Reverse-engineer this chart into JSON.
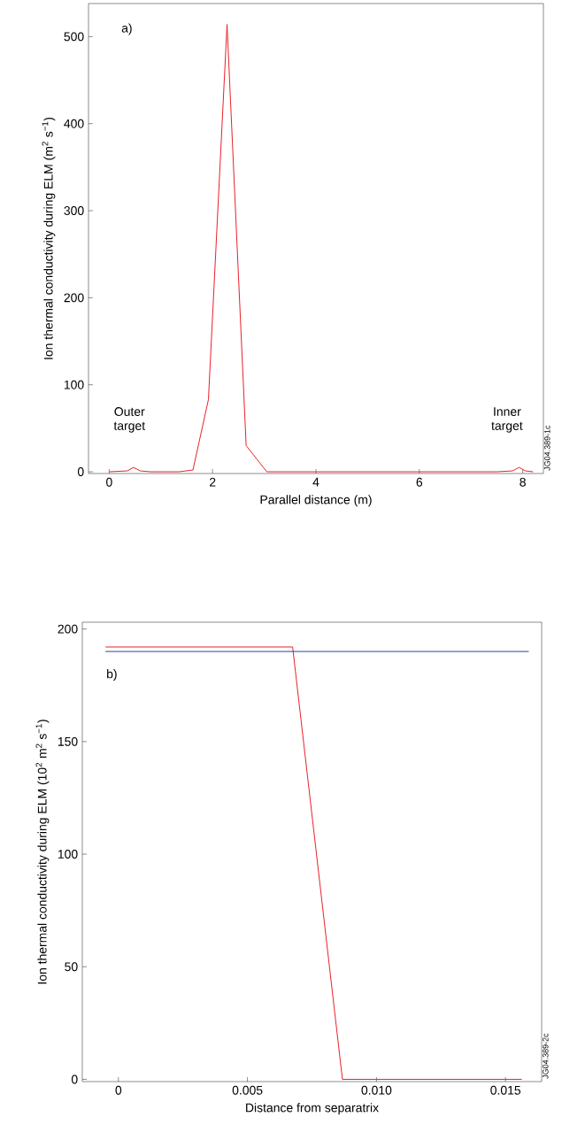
{
  "chart_data": [
    {
      "type": "line",
      "xlabel": "Parallel distance (m)",
      "ylabel": "Ion thermal conductivity during ELM (m$^{2}$ s$^{−1}$)",
      "xlim": [
        -0.4,
        8.4
      ],
      "ylim": [
        -2,
        538
      ],
      "xticks": [
        0,
        2,
        4,
        6,
        8
      ],
      "yticks": [
        0,
        100,
        200,
        300,
        400,
        500
      ],
      "annotations": [
        "a)",
        "Outer target",
        "Inner target",
        "JG04.389-1c"
      ],
      "series": [
        {
          "color": "#e8202a",
          "x": [
            0,
            0.35,
            0.47,
            0.6,
            0.8,
            1.35,
            1.62,
            1.92,
            2.28,
            2.65,
            3.05,
            5,
            7.5,
            7.8,
            7.93,
            8.05,
            8.2
          ],
          "values": [
            0,
            1,
            5,
            1,
            0,
            0,
            2,
            83,
            514,
            30,
            0,
            0,
            0,
            1,
            5,
            1,
            0
          ]
        }
      ]
    },
    {
      "type": "line",
      "xlabel": "Distance from separatrix",
      "ylabel": "Ion thermal conductivity during ELM (10$^{2}$ m$^{2}$ s$^{−1}$)",
      "xlim": [
        -0.0014,
        0.0164
      ],
      "ylim": [
        -1,
        203
      ],
      "xticks": [
        0,
        0.005,
        {
          "value": 0.01,
          "label": "0.010"
        },
        0.015
      ],
      "yticks": [
        0,
        50,
        100,
        150,
        200
      ],
      "annotations": [
        "b)",
        "JG04.389-2c"
      ],
      "series": [
        {
          "color": "#e8202a",
          "x": [
            -0.0005,
            0.00675,
            0.00868,
            0.01563
          ],
          "values": [
            192,
            192,
            0,
            0
          ]
        },
        {
          "color": "#2b3f9e",
          "x": [
            -0.0005,
            0.0159
          ],
          "values": [
            190,
            190
          ]
        }
      ]
    }
  ]
}
